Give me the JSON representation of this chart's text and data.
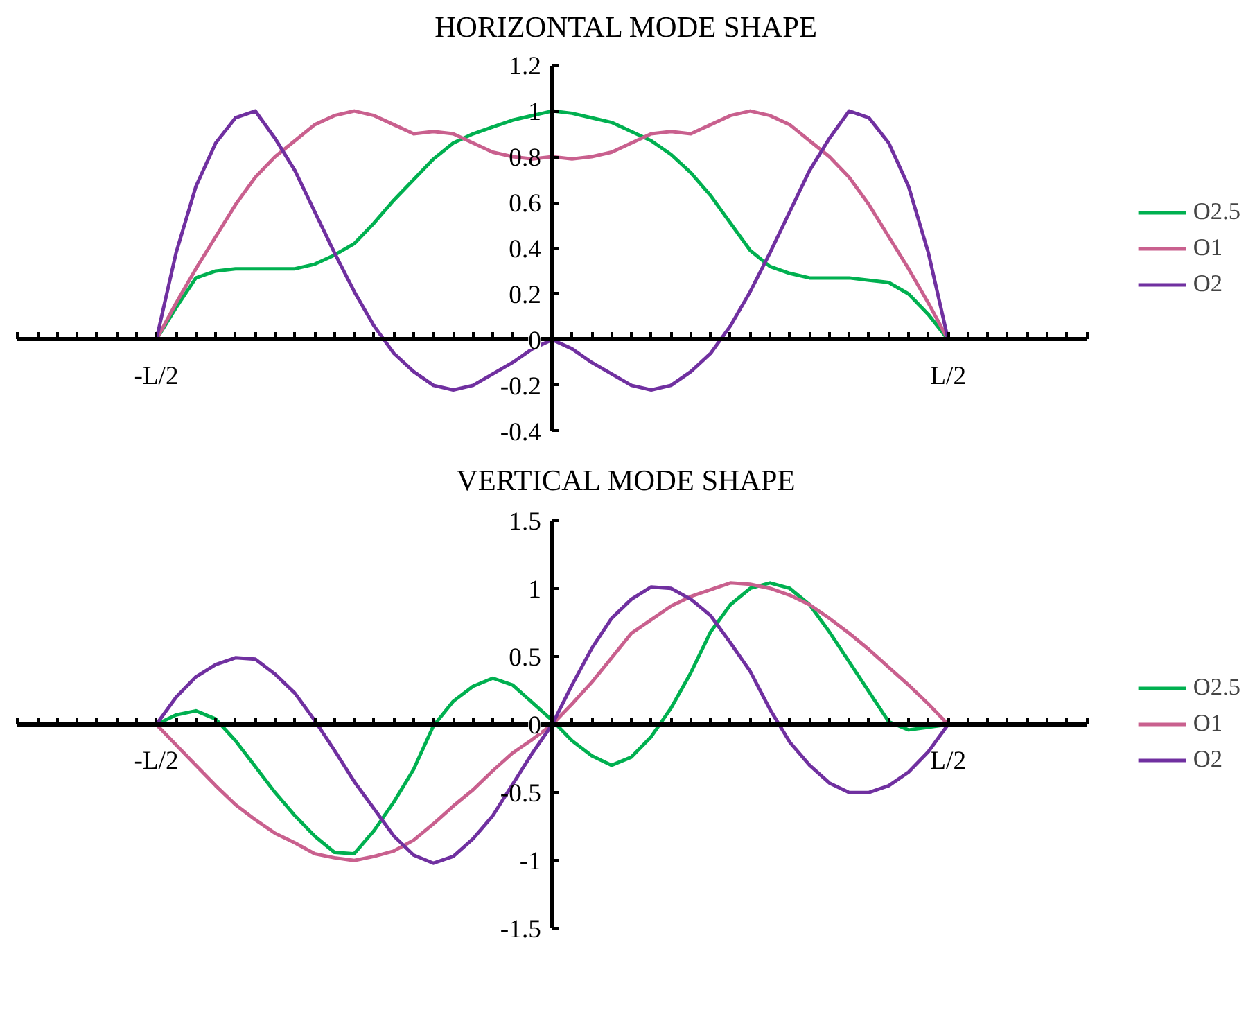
{
  "chart_data": [
    {
      "type": "line",
      "title": "HORIZONTAL MODE SHAPE",
      "categories": [
        null,
        null,
        null,
        null,
        null,
        null,
        null,
        "-L/2",
        null,
        null,
        null,
        null,
        null,
        null,
        null,
        null,
        null,
        null,
        null,
        null,
        null,
        null,
        null,
        null,
        null,
        null,
        null,
        null,
        null,
        null,
        null,
        null,
        null,
        null,
        null,
        null,
        null,
        null,
        null,
        null,
        null,
        null,
        null,
        null,
        null,
        null,
        null,
        "L/2",
        null,
        null,
        null,
        null,
        null,
        null,
        null
      ],
      "ylim": [
        -0.4,
        1.2
      ],
      "yticks": [
        -0.4,
        -0.2,
        0,
        0.2,
        0.4,
        0.6,
        0.8,
        1,
        1.2
      ],
      "legend": "right",
      "series": [
        {
          "name": "O2.5",
          "color": "#00b050",
          "values": [
            null,
            null,
            null,
            null,
            null,
            null,
            null,
            0,
            0.14,
            0.27,
            0.3,
            0.31,
            0.31,
            0.31,
            0.31,
            0.33,
            0.37,
            0.42,
            0.51,
            0.61,
            0.7,
            0.79,
            0.86,
            0.9,
            0.93,
            0.96,
            0.98,
            1.0,
            0.99,
            0.97,
            0.95,
            0.91,
            0.87,
            0.81,
            0.73,
            0.63,
            0.51,
            0.39,
            0.32,
            0.29,
            0.27,
            0.27,
            0.27,
            0.26,
            0.25,
            0.2,
            0.11,
            0,
            null,
            null,
            null,
            null,
            null,
            null,
            null
          ]
        },
        {
          "name": "O1",
          "color": "#c9608e",
          "values": [
            null,
            null,
            null,
            null,
            null,
            null,
            null,
            0,
            0.16,
            0.31,
            0.45,
            0.59,
            0.71,
            0.8,
            0.87,
            0.94,
            0.98,
            1.0,
            0.98,
            0.94,
            0.9,
            0.91,
            0.9,
            0.86,
            0.82,
            0.8,
            0.79,
            0.8,
            0.79,
            0.8,
            0.82,
            0.86,
            0.9,
            0.91,
            0.9,
            0.94,
            0.98,
            1.0,
            0.98,
            0.94,
            0.87,
            0.8,
            0.71,
            0.59,
            0.45,
            0.31,
            0.16,
            0,
            null,
            null,
            null,
            null,
            null,
            null,
            null
          ]
        },
        {
          "name": "O2",
          "color": "#7030a0",
          "values": [
            null,
            null,
            null,
            null,
            null,
            null,
            null,
            0,
            0.38,
            0.67,
            0.86,
            0.97,
            1.0,
            0.88,
            0.74,
            0.56,
            0.38,
            0.21,
            0.06,
            -0.06,
            -0.14,
            -0.2,
            -0.22,
            -0.2,
            -0.15,
            -0.1,
            -0.04,
            0,
            -0.04,
            -0.1,
            -0.15,
            -0.2,
            -0.22,
            -0.2,
            -0.14,
            -0.06,
            0.06,
            0.21,
            0.38,
            0.56,
            0.74,
            0.88,
            1.0,
            0.97,
            0.86,
            0.67,
            0.38,
            0,
            null,
            null,
            null,
            null,
            null,
            null,
            null
          ]
        }
      ]
    },
    {
      "type": "line",
      "title": "VERTICAL MODE SHAPE",
      "categories": [
        null,
        null,
        null,
        null,
        null,
        null,
        null,
        "-L/2",
        null,
        null,
        null,
        null,
        null,
        null,
        null,
        null,
        null,
        null,
        null,
        null,
        null,
        null,
        null,
        null,
        null,
        null,
        null,
        null,
        null,
        null,
        null,
        null,
        null,
        null,
        null,
        null,
        null,
        null,
        null,
        null,
        null,
        null,
        null,
        null,
        null,
        null,
        null,
        "L/2",
        null,
        null,
        null,
        null,
        null,
        null,
        null
      ],
      "ylim": [
        -1.5,
        1.5
      ],
      "yticks": [
        -1.5,
        -1,
        -0.5,
        0,
        0.5,
        1,
        1.5
      ],
      "legend": "right",
      "series": [
        {
          "name": "O2.5",
          "color": "#00b050",
          "values": [
            null,
            null,
            null,
            null,
            null,
            null,
            null,
            0,
            0.07,
            0.1,
            0.04,
            -0.12,
            -0.31,
            -0.5,
            -0.67,
            -0.82,
            -0.94,
            -0.95,
            -0.78,
            -0.57,
            -0.33,
            -0.01,
            0.17,
            0.28,
            0.34,
            0.29,
            0.16,
            0.03,
            -0.12,
            -0.23,
            -0.3,
            -0.24,
            -0.09,
            0.12,
            0.38,
            0.68,
            0.88,
            1.0,
            1.04,
            1.0,
            0.88,
            0.68,
            0.46,
            0.24,
            0.02,
            -0.04,
            -0.02,
            0,
            null,
            null,
            null,
            null,
            null,
            null,
            null
          ]
        },
        {
          "name": "O1",
          "color": "#c9608e",
          "values": [
            null,
            null,
            null,
            null,
            null,
            null,
            null,
            0,
            -0.15,
            -0.3,
            -0.45,
            -0.59,
            -0.7,
            -0.8,
            -0.87,
            -0.95,
            -0.98,
            -1.0,
            -0.97,
            -0.93,
            -0.85,
            -0.73,
            -0.6,
            -0.48,
            -0.34,
            -0.21,
            -0.11,
            0,
            0.15,
            0.31,
            0.49,
            0.67,
            0.77,
            0.87,
            0.94,
            0.99,
            1.04,
            1.03,
            1.0,
            0.95,
            0.88,
            0.78,
            0.67,
            0.55,
            0.42,
            0.29,
            0.15,
            0,
            null,
            null,
            null,
            null,
            null,
            null,
            null
          ]
        },
        {
          "name": "O2",
          "color": "#7030a0",
          "values": [
            null,
            null,
            null,
            null,
            null,
            null,
            null,
            0,
            0.2,
            0.35,
            0.44,
            0.49,
            0.48,
            0.37,
            0.23,
            0.03,
            -0.19,
            -0.42,
            -0.62,
            -0.82,
            -0.96,
            -1.02,
            -0.97,
            -0.84,
            -0.67,
            -0.44,
            -0.21,
            0,
            0.29,
            0.56,
            0.78,
            0.92,
            1.01,
            1.0,
            0.92,
            0.8,
            0.6,
            0.39,
            0.11,
            -0.13,
            -0.3,
            -0.43,
            -0.5,
            -0.5,
            -0.45,
            -0.35,
            -0.2,
            0,
            null,
            null,
            null,
            null,
            null,
            null,
            null
          ]
        }
      ]
    }
  ]
}
